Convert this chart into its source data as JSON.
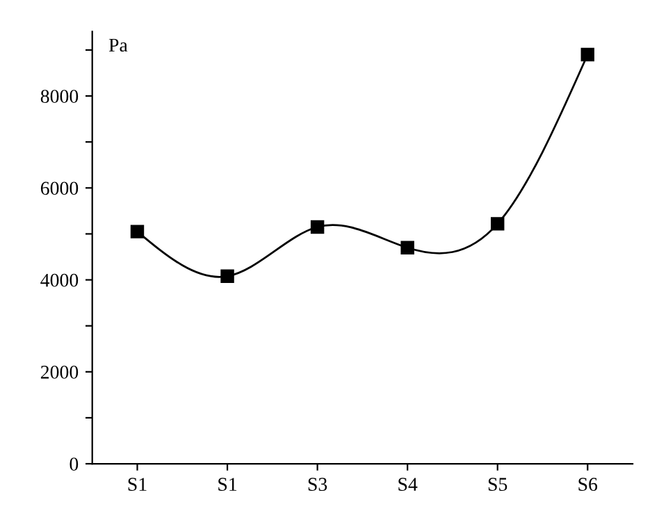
{
  "chart_data": {
    "type": "line",
    "ylabel": "Pa",
    "categories": [
      "S1",
      "S1",
      "S3",
      "S4",
      "S5",
      "S6"
    ],
    "series": [
      {
        "color": "#000000",
        "values": [
          5050,
          4080,
          5150,
          4700,
          5220,
          8900
        ]
      }
    ],
    "ylim": [
      0,
      9400
    ],
    "yticks": [
      0,
      {
        "value": 1000,
        "label": null
      },
      2000,
      {
        "value": 3000,
        "label": null
      },
      4000,
      {
        "value": 5000,
        "label": null
      },
      6000,
      {
        "value": 7000,
        "label": null
      },
      8000,
      {
        "value": 9000,
        "label": null
      }
    ],
    "marker": "square",
    "line_style": "solid",
    "grid": false,
    "legend": false
  }
}
